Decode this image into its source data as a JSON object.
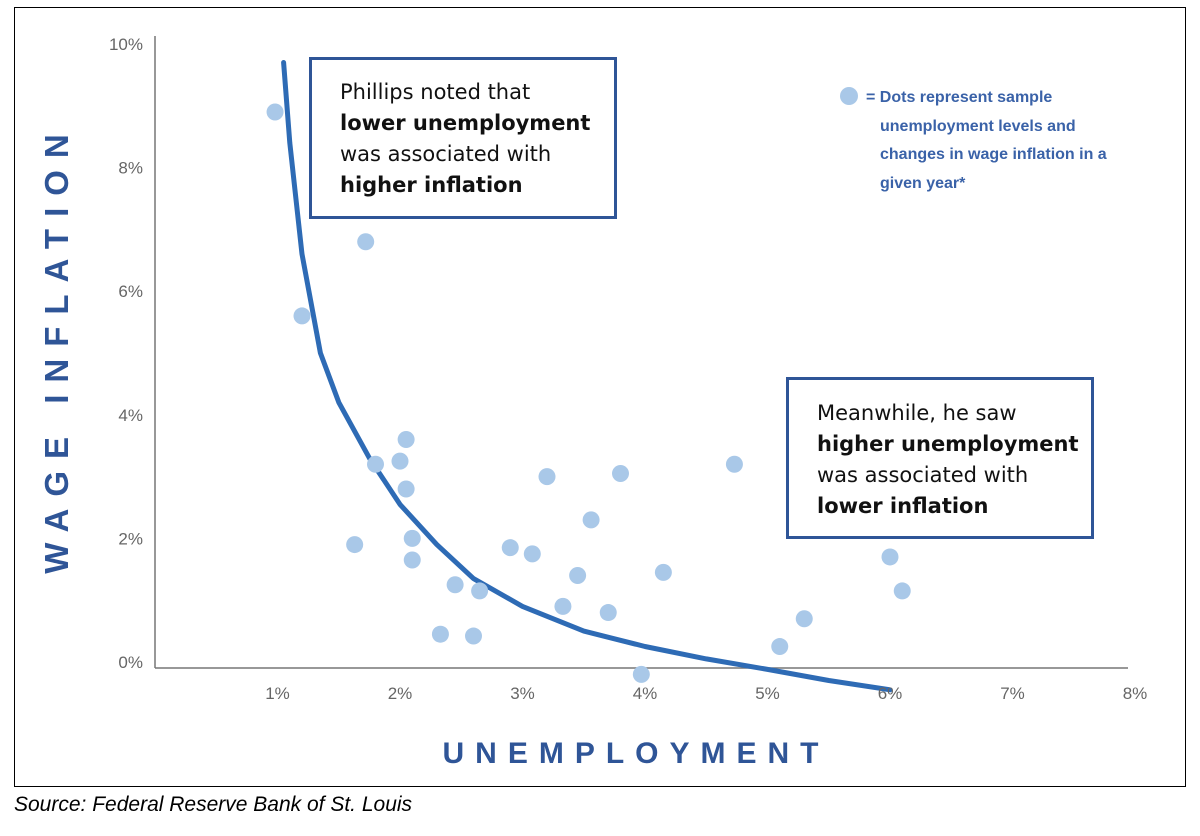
{
  "chart_data": {
    "type": "scatter",
    "xlabel": "UNEMPLOYMENT",
    "ylabel": "WAGE INFLATION",
    "xlim": [
      0,
      8
    ],
    "ylim": [
      -0.5,
      10
    ],
    "x_ticks": [
      {
        "value": 1,
        "label": "1%"
      },
      {
        "value": 2,
        "label": "2%"
      },
      {
        "value": 3,
        "label": "3%"
      },
      {
        "value": 4,
        "label": "4%"
      },
      {
        "value": 5,
        "label": "5%"
      },
      {
        "value": 6,
        "label": "6%"
      },
      {
        "value": 7,
        "label": "7%"
      },
      {
        "value": 8,
        "label": "8%"
      }
    ],
    "y_ticks": [
      {
        "value": 0,
        "label": "0%"
      },
      {
        "value": 2,
        "label": "2%"
      },
      {
        "value": 4,
        "label": "4%"
      },
      {
        "value": 6,
        "label": "6%"
      },
      {
        "value": 8,
        "label": "8%"
      },
      {
        "value": 10,
        "label": "10%"
      }
    ],
    "points": [
      {
        "x": 0.98,
        "y": 8.9
      },
      {
        "x": 1.72,
        "y": 6.8
      },
      {
        "x": 1.2,
        "y": 5.6
      },
      {
        "x": 1.8,
        "y": 3.2
      },
      {
        "x": 2.0,
        "y": 3.25
      },
      {
        "x": 2.05,
        "y": 3.6
      },
      {
        "x": 2.05,
        "y": 2.8
      },
      {
        "x": 1.63,
        "y": 1.9
      },
      {
        "x": 2.1,
        "y": 2.0
      },
      {
        "x": 2.1,
        "y": 1.65
      },
      {
        "x": 2.45,
        "y": 1.25
      },
      {
        "x": 2.65,
        "y": 1.15
      },
      {
        "x": 2.33,
        "y": 0.45
      },
      {
        "x": 2.6,
        "y": 0.42
      },
      {
        "x": 2.9,
        "y": 1.85
      },
      {
        "x": 3.08,
        "y": 1.75
      },
      {
        "x": 3.2,
        "y": 3.0
      },
      {
        "x": 3.33,
        "y": 0.9
      },
      {
        "x": 3.45,
        "y": 1.4
      },
      {
        "x": 3.56,
        "y": 2.3
      },
      {
        "x": 3.7,
        "y": 0.8
      },
      {
        "x": 3.8,
        "y": 3.05
      },
      {
        "x": 3.97,
        "y": -0.2
      },
      {
        "x": 4.15,
        "y": 1.45
      },
      {
        "x": 4.73,
        "y": 3.2
      },
      {
        "x": 5.1,
        "y": 0.25
      },
      {
        "x": 5.3,
        "y": 0.7
      },
      {
        "x": 6.0,
        "y": 1.7
      },
      {
        "x": 6.1,
        "y": 1.15
      }
    ],
    "curve": {
      "type": "line",
      "x": [
        1.05,
        1.1,
        1.2,
        1.35,
        1.5,
        1.75,
        2.0,
        2.3,
        2.6,
        3.0,
        3.5,
        4.0,
        4.5,
        5.0,
        5.5,
        6.0
      ],
      "y": [
        9.7,
        8.4,
        6.6,
        5.0,
        4.2,
        3.3,
        2.55,
        1.9,
        1.35,
        0.9,
        0.5,
        0.25,
        0.05,
        -0.12,
        -0.3,
        -0.45
      ]
    },
    "colors": {
      "curve": "#2e6bb5",
      "points": "#a9c8e8",
      "axis_title": "#2f5597",
      "axis": "#555555"
    }
  },
  "annotations": {
    "box1": {
      "line1": "Phillips noted that",
      "bold1": "lower unemployment",
      "line3": "was associated with",
      "bold2": "higher inflation"
    },
    "box2": {
      "line1": "Meanwhile, he saw",
      "bold1": "higher unemployment",
      "line3": "was associated with",
      "bold2": "lower inflation"
    }
  },
  "legend": {
    "text": "= Dots represent sample unemployment levels and changes in wage inflation in a given year*"
  },
  "source": "Source: Federal Reserve Bank of St. Louis"
}
